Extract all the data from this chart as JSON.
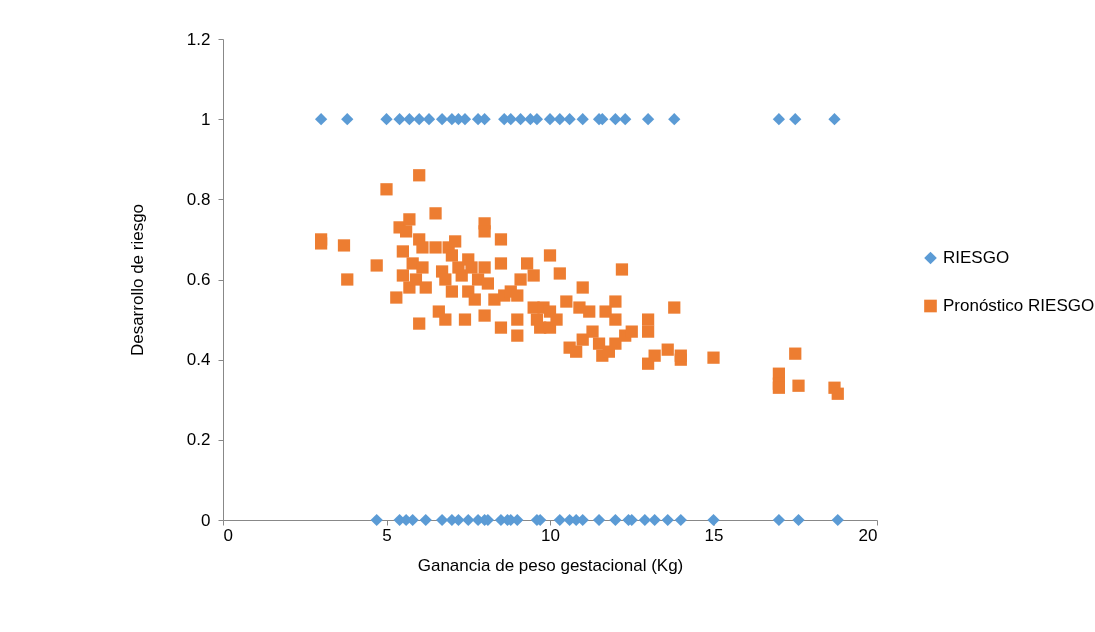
{
  "chart_data": {
    "type": "scatter",
    "xlabel": "Ganancia de peso gestacional (Kg)",
    "ylabel": "Desarrollo de riesgo",
    "xlim": [
      0,
      20
    ],
    "xticks": [
      0,
      5,
      10,
      15,
      20
    ],
    "ylim": [
      0,
      1.2
    ],
    "yticks": [
      0,
      0.2,
      0.4,
      0.6,
      0.8,
      1,
      1.2
    ],
    "grid": false,
    "legend": "right",
    "series": [
      {
        "name": "RIESGO",
        "color": "#5b9bd5",
        "marker": "diamond",
        "x": [
          3.0,
          3.8,
          5.0,
          5.4,
          5.7,
          6.0,
          6.3,
          6.7,
          7.0,
          7.2,
          7.4,
          7.8,
          8.0,
          8.6,
          8.8,
          9.1,
          9.4,
          9.6,
          10.0,
          10.3,
          10.6,
          11.0,
          11.5,
          11.6,
          12.0,
          12.3,
          13.0,
          13.8,
          17.0,
          17.5,
          18.7,
          4.7,
          5.4,
          5.6,
          5.8,
          6.2,
          6.7,
          7.0,
          7.2,
          7.5,
          7.8,
          8.0,
          8.1,
          8.5,
          8.7,
          8.8,
          9.0,
          9.6,
          9.7,
          10.3,
          10.6,
          10.8,
          11.0,
          11.5,
          12.0,
          12.4,
          12.5,
          12.9,
          13.2,
          13.6,
          14.0,
          15.0,
          17.0,
          17.6,
          18.8
        ],
        "values": [
          1,
          1,
          1,
          1,
          1,
          1,
          1,
          1,
          1,
          1,
          1,
          1,
          1,
          1,
          1,
          1,
          1,
          1,
          1,
          1,
          1,
          1,
          1,
          1,
          1,
          1,
          1,
          1,
          1,
          1,
          1,
          0,
          0,
          0,
          0,
          0,
          0,
          0,
          0,
          0,
          0,
          0,
          0,
          0,
          0,
          0,
          0,
          0,
          0,
          0,
          0,
          0,
          0,
          0,
          0,
          0,
          0,
          0,
          0,
          0,
          0,
          0,
          0,
          0,
          0
        ]
      },
      {
        "name": "Pronóstico RIESGO",
        "color": "#ed7d31",
        "marker": "square",
        "x": [
          3.0,
          3.0,
          3.7,
          3.8,
          4.7,
          5.0,
          5.3,
          5.4,
          5.5,
          5.5,
          5.6,
          5.7,
          5.7,
          5.8,
          5.9,
          6.0,
          6.0,
          6.0,
          6.1,
          6.1,
          6.2,
          6.5,
          6.5,
          6.6,
          6.7,
          6.8,
          6.8,
          6.9,
          7.0,
          7.0,
          7.1,
          7.2,
          7.3,
          7.4,
          7.5,
          7.5,
          7.6,
          7.7,
          7.8,
          8.0,
          8.0,
          8.0,
          8.0,
          8.1,
          8.3,
          8.5,
          8.5,
          8.5,
          8.6,
          8.8,
          9.0,
          9.0,
          9.0,
          9.1,
          9.3,
          9.5,
          9.5,
          9.6,
          9.7,
          9.8,
          10.0,
          10.0,
          10.0,
          10.2,
          10.3,
          10.5,
          10.6,
          10.8,
          10.9,
          11.0,
          11.0,
          11.2,
          11.3,
          11.5,
          11.6,
          11.7,
          11.8,
          12.0,
          12.0,
          12.0,
          12.2,
          12.3,
          12.5,
          13.0,
          13.0,
          13.0,
          13.2,
          13.6,
          13.8,
          14.0,
          14.0,
          15.0,
          17.0,
          17.0,
          17.0,
          17.5,
          17.6,
          18.7,
          18.8
        ],
        "values": [
          0.7,
          0.69,
          0.685,
          0.6,
          0.635,
          0.825,
          0.555,
          0.73,
          0.67,
          0.61,
          0.72,
          0.75,
          0.58,
          0.64,
          0.6,
          0.86,
          0.7,
          0.49,
          0.68,
          0.63,
          0.58,
          0.765,
          0.68,
          0.52,
          0.62,
          0.6,
          0.5,
          0.68,
          0.66,
          0.57,
          0.695,
          0.63,
          0.61,
          0.5,
          0.65,
          0.57,
          0.63,
          0.55,
          0.6,
          0.74,
          0.72,
          0.63,
          0.51,
          0.59,
          0.55,
          0.7,
          0.64,
          0.48,
          0.56,
          0.57,
          0.5,
          0.46,
          0.56,
          0.6,
          0.64,
          0.61,
          0.53,
          0.5,
          0.48,
          0.53,
          0.66,
          0.52,
          0.48,
          0.5,
          0.615,
          0.545,
          0.43,
          0.42,
          0.53,
          0.58,
          0.45,
          0.52,
          0.47,
          0.44,
          0.41,
          0.52,
          0.42,
          0.545,
          0.5,
          0.44,
          0.625,
          0.46,
          0.47,
          0.5,
          0.47,
          0.39,
          0.41,
          0.425,
          0.53,
          0.4,
          0.41,
          0.405,
          0.365,
          0.34,
          0.33,
          0.415,
          0.335,
          0.33,
          0.315
        ]
      }
    ]
  }
}
